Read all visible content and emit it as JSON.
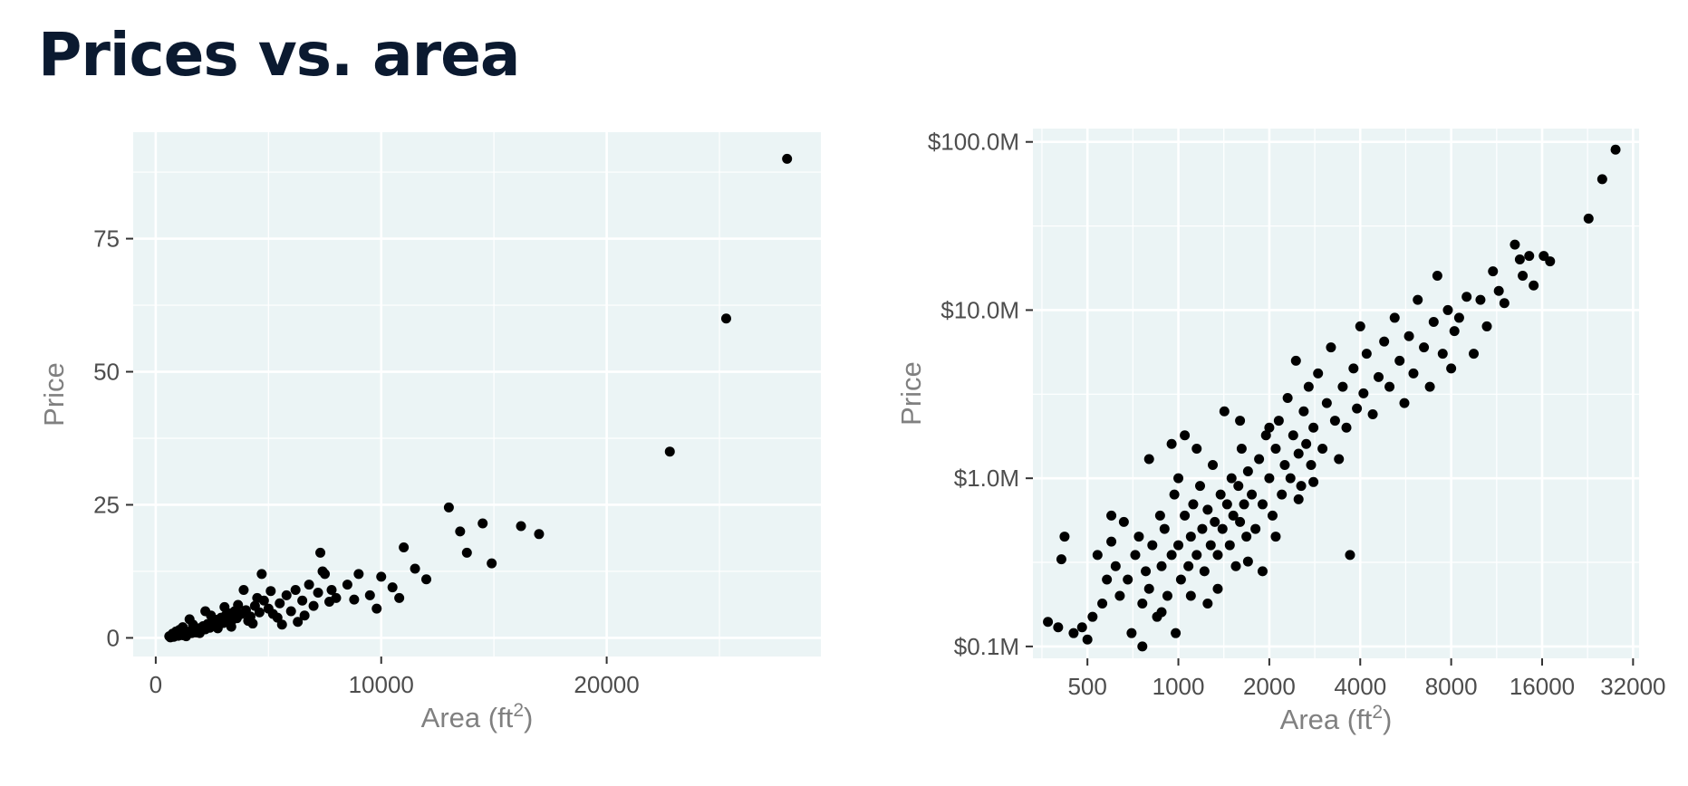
{
  "page": {
    "title": "Prices vs. area"
  },
  "colors": {
    "panel": "#ebf4f5",
    "grid": "#ffffff",
    "point": "#000000",
    "tick_text": "#4d4d4d",
    "axis_title": "#808080",
    "title": "#0b1a30"
  },
  "chart_data": [
    {
      "type": "scatter",
      "title": "",
      "xlabel": "Area (ft",
      "xlabel_sup": "2",
      "xlabel_end": ")",
      "ylabel": "Price",
      "x_scale": "linear",
      "y_scale": "linear",
      "xlim": [
        -1000,
        29500
      ],
      "ylim": [
        -3.5,
        95
      ],
      "x_ticks": [
        0,
        10000,
        20000
      ],
      "x_tick_labels": [
        "0",
        "10000",
        "20000"
      ],
      "y_ticks": [
        0,
        25,
        50,
        75
      ],
      "y_tick_labels": [
        "0",
        "25",
        "50",
        "75"
      ],
      "grid": true,
      "legend": "none",
      "points": [
        [
          600,
          0.3
        ],
        [
          700,
          0.5
        ],
        [
          800,
          0.2
        ],
        [
          900,
          0.6
        ],
        [
          1000,
          0.4
        ],
        [
          1100,
          0.8
        ],
        [
          1200,
          0.5
        ],
        [
          1300,
          1.0
        ],
        [
          1400,
          0.7
        ],
        [
          1500,
          1.2
        ],
        [
          1600,
          0.9
        ],
        [
          1700,
          1.5
        ],
        [
          1800,
          1.0
        ],
        [
          1900,
          1.8
        ],
        [
          2000,
          1.3
        ],
        [
          2100,
          2.2
        ],
        [
          2200,
          1.6
        ],
        [
          2300,
          2.6
        ],
        [
          2400,
          1.9
        ],
        [
          2500,
          3.0
        ],
        [
          2600,
          2.2
        ],
        [
          2700,
          3.4
        ],
        [
          2800,
          2.5
        ],
        [
          2900,
          3.8
        ],
        [
          3000,
          2.8
        ],
        [
          3100,
          4.2
        ],
        [
          3200,
          3.1
        ],
        [
          3300,
          4.6
        ],
        [
          3400,
          3.4
        ],
        [
          3500,
          5.0
        ],
        [
          3600,
          3.7
        ],
        [
          3800,
          4.5
        ],
        [
          4000,
          5.2
        ],
        [
          4200,
          4.0
        ],
        [
          4400,
          6.0
        ],
        [
          4600,
          4.8
        ],
        [
          4800,
          7.0
        ],
        [
          5000,
          5.5
        ],
        [
          5200,
          4.5
        ],
        [
          5500,
          6.5
        ],
        [
          5800,
          8.0
        ],
        [
          6000,
          5.0
        ],
        [
          6200,
          9.0
        ],
        [
          6500,
          7.0
        ],
        [
          6800,
          10.0
        ],
        [
          7000,
          6.0
        ],
        [
          7200,
          8.5
        ],
        [
          7500,
          12.0
        ],
        [
          7800,
          9.0
        ],
        [
          8000,
          7.5
        ],
        [
          8500,
          10.0
        ],
        [
          9000,
          12.0
        ],
        [
          9500,
          8.0
        ],
        [
          10000,
          11.5
        ],
        [
          10500,
          9.5
        ],
        [
          11000,
          17.0
        ],
        [
          11500,
          13.0
        ],
        [
          12000,
          11.0
        ],
        [
          10800,
          7.5
        ],
        [
          9800,
          5.5
        ],
        [
          7300,
          16.0
        ],
        [
          7400,
          12.5
        ],
        [
          6300,
          3.0
        ],
        [
          5600,
          2.5
        ],
        [
          4700,
          12.0
        ],
        [
          3900,
          9.0
        ],
        [
          2200,
          5.0
        ],
        [
          1500,
          3.5
        ],
        [
          1200,
          2.0
        ],
        [
          900,
          1.2
        ],
        [
          650,
          0.1
        ],
        [
          750,
          0.8
        ],
        [
          850,
          0.4
        ],
        [
          1050,
          1.5
        ],
        [
          1350,
          0.3
        ],
        [
          1650,
          2.5
        ],
        [
          1950,
          0.9
        ],
        [
          2450,
          4.2
        ],
        [
          2750,
          1.8
        ],
        [
          3050,
          5.8
        ],
        [
          3350,
          2.1
        ],
        [
          3650,
          6.2
        ],
        [
          4100,
          3.2
        ],
        [
          4500,
          7.5
        ],
        [
          5100,
          8.8
        ],
        [
          5400,
          3.8
        ],
        [
          6600,
          4.2
        ],
        [
          7700,
          6.8
        ],
        [
          8800,
          7.2
        ],
        [
          4300,
          2.7
        ],
        [
          13000,
          24.5
        ],
        [
          13500,
          20.0
        ],
        [
          13800,
          16.0
        ],
        [
          14500,
          21.5
        ],
        [
          14900,
          14.0
        ],
        [
          16200,
          21.0
        ],
        [
          17000,
          19.5
        ],
        [
          22800,
          35.0
        ],
        [
          25300,
          60.0
        ],
        [
          28000,
          90.0
        ]
      ]
    },
    {
      "type": "scatter",
      "title": "",
      "xlabel": "Area (ft",
      "xlabel_sup": "2",
      "xlabel_end": ")",
      "ylabel": "Price",
      "x_scale": "log2",
      "y_scale": "log10",
      "xlim": [
        330,
        33500
      ],
      "ylim": [
        0.085,
        120
      ],
      "x_ticks": [
        500,
        1000,
        2000,
        4000,
        8000,
        16000,
        32000
      ],
      "x_tick_labels": [
        "500",
        "1000",
        "2000",
        "4000",
        "8000",
        "16000",
        "32000"
      ],
      "y_ticks": [
        0.1,
        1,
        10,
        100
      ],
      "y_tick_labels": [
        "$0.1M",
        "$1.0M",
        "$10.0M",
        "$100.0M"
      ],
      "grid": true,
      "legend": "none",
      "points": [
        [
          370,
          0.14
        ],
        [
          400,
          0.13
        ],
        [
          420,
          0.45
        ],
        [
          410,
          0.33
        ],
        [
          450,
          0.12
        ],
        [
          480,
          0.13
        ],
        [
          500,
          0.11
        ],
        [
          520,
          0.15
        ],
        [
          540,
          0.35
        ],
        [
          560,
          0.18
        ],
        [
          580,
          0.25
        ],
        [
          600,
          0.42
        ],
        [
          600,
          0.6
        ],
        [
          620,
          0.3
        ],
        [
          640,
          0.2
        ],
        [
          660,
          0.55
        ],
        [
          680,
          0.25
        ],
        [
          700,
          0.12
        ],
        [
          720,
          0.35
        ],
        [
          740,
          0.45
        ],
        [
          760,
          0.18
        ],
        [
          780,
          0.28
        ],
        [
          800,
          0.22
        ],
        [
          800,
          1.3
        ],
        [
          820,
          0.4
        ],
        [
          850,
          0.15
        ],
        [
          870,
          0.6
        ],
        [
          880,
          0.3
        ],
        [
          900,
          0.5
        ],
        [
          920,
          0.2
        ],
        [
          950,
          0.35
        ],
        [
          970,
          0.8
        ],
        [
          1000,
          0.4
        ],
        [
          1000,
          1.0
        ],
        [
          1020,
          0.25
        ],
        [
          1050,
          0.6
        ],
        [
          1080,
          0.3
        ],
        [
          1100,
          0.45
        ],
        [
          1120,
          0.7
        ],
        [
          1150,
          0.35
        ],
        [
          1180,
          0.9
        ],
        [
          1200,
          0.5
        ],
        [
          1220,
          0.28
        ],
        [
          1250,
          0.65
        ],
        [
          1280,
          0.4
        ],
        [
          1300,
          1.2
        ],
        [
          1320,
          0.55
        ],
        [
          1350,
          0.35
        ],
        [
          1380,
          0.8
        ],
        [
          1400,
          0.5
        ],
        [
          1420,
          2.5
        ],
        [
          1450,
          0.7
        ],
        [
          1480,
          0.4
        ],
        [
          1500,
          1.0
        ],
        [
          1520,
          0.6
        ],
        [
          1550,
          0.3
        ],
        [
          1580,
          0.9
        ],
        [
          1600,
          0.55
        ],
        [
          1620,
          1.5
        ],
        [
          1650,
          0.7
        ],
        [
          1680,
          0.45
        ],
        [
          1700,
          1.1
        ],
        [
          1750,
          0.8
        ],
        [
          1800,
          0.5
        ],
        [
          1850,
          1.3
        ],
        [
          1900,
          0.7
        ],
        [
          1950,
          1.8
        ],
        [
          2000,
          1.0
        ],
        [
          2050,
          0.6
        ],
        [
          2100,
          1.5
        ],
        [
          2150,
          2.2
        ],
        [
          2200,
          0.8
        ],
        [
          2250,
          1.2
        ],
        [
          2300,
          3.0
        ],
        [
          2350,
          1.0
        ],
        [
          2400,
          1.8
        ],
        [
          2450,
          5.0
        ],
        [
          2500,
          1.4
        ],
        [
          2550,
          0.9
        ],
        [
          2600,
          2.5
        ],
        [
          2650,
          1.6
        ],
        [
          2700,
          3.5
        ],
        [
          2750,
          1.2
        ],
        [
          2800,
          2.0
        ],
        [
          2900,
          4.2
        ],
        [
          3000,
          1.5
        ],
        [
          3100,
          2.8
        ],
        [
          3200,
          6.0
        ],
        [
          3300,
          2.2
        ],
        [
          3400,
          1.3
        ],
        [
          3500,
          3.5
        ],
        [
          3600,
          2.0
        ],
        [
          3700,
          0.35
        ],
        [
          3800,
          4.5
        ],
        [
          3900,
          2.6
        ],
        [
          4000,
          8.0
        ],
        [
          4100,
          3.2
        ],
        [
          4200,
          5.5
        ],
        [
          4400,
          2.4
        ],
        [
          4600,
          4.0
        ],
        [
          4800,
          6.5
        ],
        [
          5000,
          3.5
        ],
        [
          5200,
          9.0
        ],
        [
          5400,
          5.0
        ],
        [
          5600,
          2.8
        ],
        [
          5800,
          7.0
        ],
        [
          6000,
          4.2
        ],
        [
          6200,
          11.5
        ],
        [
          6500,
          6.0
        ],
        [
          6800,
          3.5
        ],
        [
          7000,
          8.5
        ],
        [
          7200,
          16.0
        ],
        [
          7500,
          5.5
        ],
        [
          7800,
          10.0
        ],
        [
          8000,
          4.5
        ],
        [
          8200,
          7.5
        ],
        [
          8500,
          9.0
        ],
        [
          9000,
          12.0
        ],
        [
          9500,
          5.5
        ],
        [
          10000,
          11.5
        ],
        [
          10500,
          8.0
        ],
        [
          11000,
          17.0
        ],
        [
          11500,
          13.0
        ],
        [
          12000,
          11.0
        ],
        [
          13000,
          24.5
        ],
        [
          13500,
          20.0
        ],
        [
          13800,
          16.0
        ],
        [
          14500,
          21.0
        ],
        [
          15000,
          14.0
        ],
        [
          16200,
          21.0
        ],
        [
          17000,
          19.5
        ],
        [
          22800,
          35.0
        ],
        [
          25300,
          60.0
        ],
        [
          28000,
          90.0
        ],
        [
          1250,
          0.18
        ],
        [
          980,
          0.12
        ],
        [
          880,
          0.16
        ],
        [
          1100,
          0.2
        ],
        [
          760,
          0.1
        ],
        [
          1350,
          0.22
        ],
        [
          1700,
          0.32
        ],
        [
          2100,
          0.45
        ],
        [
          1900,
          0.28
        ],
        [
          1150,
          1.5
        ],
        [
          1050,
          1.8
        ],
        [
          950,
          1.6
        ],
        [
          1600,
          2.2
        ],
        [
          2000,
          2.0
        ],
        [
          2500,
          0.75
        ],
        [
          2800,
          0.95
        ]
      ]
    }
  ]
}
